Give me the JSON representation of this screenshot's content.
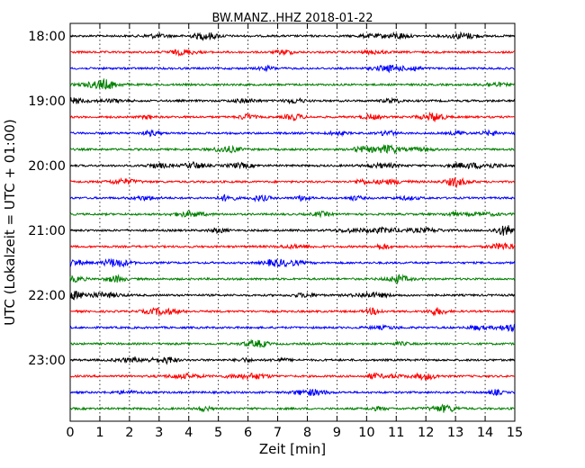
{
  "chart_data": {
    "type": "line",
    "title": "BW.MANZ..HHZ 2018-01-22",
    "xlabel": "Zeit  [min]",
    "ylabel": "UTC (Lokalzeit = UTC + 01:00)",
    "xlim": [
      0,
      15
    ],
    "x_ticks": [
      "0",
      "1",
      "2",
      "3",
      "4",
      "5",
      "6",
      "7",
      "8",
      "9",
      "10",
      "11",
      "12",
      "13",
      "14",
      "15"
    ],
    "y_tick_labels": [
      "18:00",
      "19:00",
      "20:00",
      "21:00",
      "22:00",
      "23:00"
    ],
    "grid": "vertical dotted lines at each minute",
    "trace_colors": [
      "#000000",
      "#ff0000",
      "#0000ff",
      "#008000"
    ],
    "traces": [
      {
        "start": "18:00",
        "color": "#000000"
      },
      {
        "start": "18:15",
        "color": "#ff0000"
      },
      {
        "start": "18:30",
        "color": "#0000ff"
      },
      {
        "start": "18:45",
        "color": "#008000"
      },
      {
        "start": "19:00",
        "color": "#000000"
      },
      {
        "start": "19:15",
        "color": "#ff0000"
      },
      {
        "start": "19:30",
        "color": "#0000ff"
      },
      {
        "start": "19:45",
        "color": "#008000"
      },
      {
        "start": "20:00",
        "color": "#000000"
      },
      {
        "start": "20:15",
        "color": "#ff0000"
      },
      {
        "start": "20:30",
        "color": "#0000ff"
      },
      {
        "start": "20:45",
        "color": "#008000"
      },
      {
        "start": "21:00",
        "color": "#000000"
      },
      {
        "start": "21:15",
        "color": "#ff0000"
      },
      {
        "start": "21:30",
        "color": "#0000ff"
      },
      {
        "start": "21:45",
        "color": "#008000"
      },
      {
        "start": "22:00",
        "color": "#000000"
      },
      {
        "start": "22:15",
        "color": "#ff0000"
      },
      {
        "start": "22:30",
        "color": "#0000ff"
      },
      {
        "start": "22:45",
        "color": "#008000"
      },
      {
        "start": "23:00",
        "color": "#000000"
      },
      {
        "start": "23:15",
        "color": "#ff0000"
      },
      {
        "start": "23:30",
        "color": "#0000ff"
      },
      {
        "start": "23:45",
        "color": "#008000"
      }
    ]
  }
}
